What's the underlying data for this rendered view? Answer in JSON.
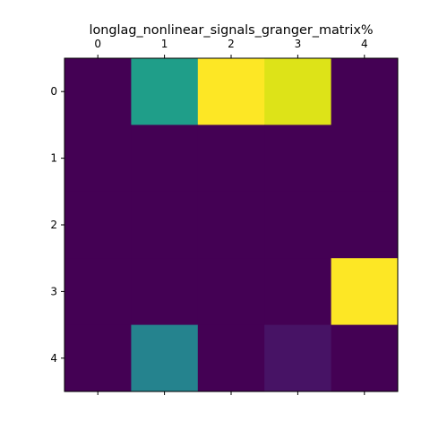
{
  "chart_data": {
    "type": "heatmap",
    "title": "longlag_nonlinear_signals_granger_matrix%",
    "xlabel": "",
    "ylabel": "",
    "x_ticks": [
      "0",
      "1",
      "2",
      "3",
      "4"
    ],
    "y_ticks": [
      "0",
      "1",
      "2",
      "3",
      "4"
    ],
    "x_tick_position": "top",
    "colormap": "viridis",
    "value_range": [
      0,
      1
    ],
    "matrix": [
      [
        0.0,
        0.55,
        1.0,
        0.93,
        0.0
      ],
      [
        0.0,
        0.0,
        0.0,
        0.0,
        0.0
      ],
      [
        0.0,
        0.0,
        0.0,
        0.0,
        0.0
      ],
      [
        0.0,
        0.0,
        0.0,
        0.0,
        1.0
      ],
      [
        0.0,
        0.42,
        0.0,
        0.05,
        0.0
      ]
    ],
    "cell_colors": [
      [
        "#440154",
        "#1f9e89",
        "#fde725",
        "#dde318",
        "#440154"
      ],
      [
        "#440154",
        "#440154",
        "#440154",
        "#440154",
        "#440154"
      ],
      [
        "#440154",
        "#440154",
        "#440154",
        "#440154",
        "#440154"
      ],
      [
        "#440154",
        "#440154",
        "#440154",
        "#440154",
        "#fde725"
      ],
      [
        "#440154",
        "#25838e",
        "#440154",
        "#471365",
        "#440154"
      ]
    ],
    "grid": false,
    "legend": "none"
  }
}
